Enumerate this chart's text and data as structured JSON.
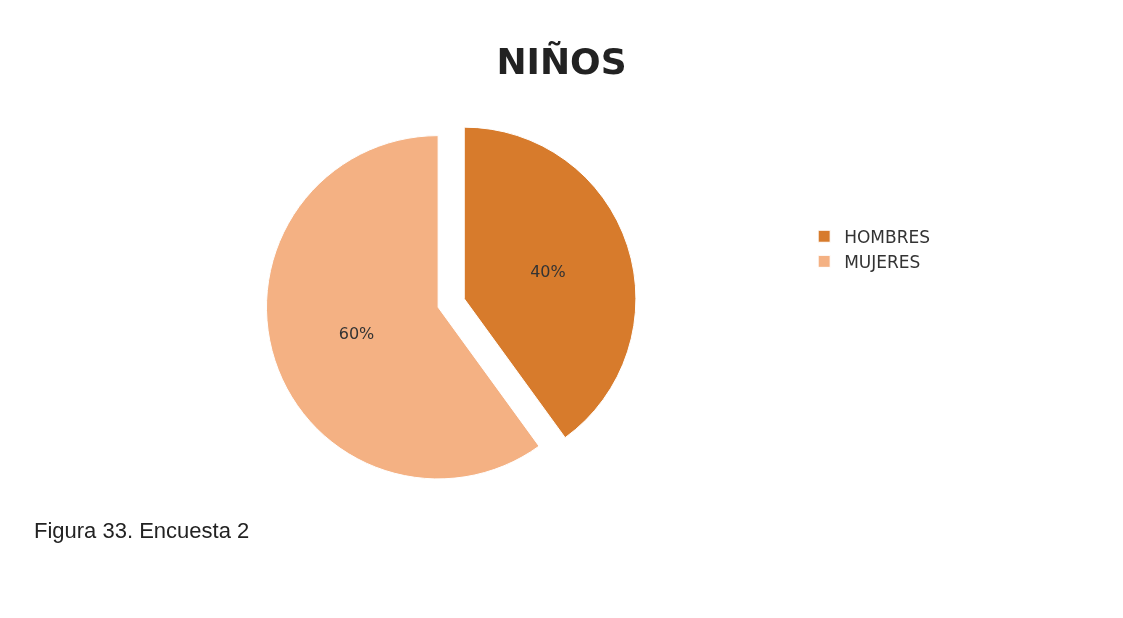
{
  "chart_data": {
    "type": "pie",
    "title": "NIÑOS",
    "categories": [
      "HOMBRES",
      "MUJERES"
    ],
    "values": [
      40,
      60
    ],
    "colors": [
      "#d77b2c",
      "#f4b183"
    ],
    "value_labels": [
      "40%",
      "60%"
    ],
    "legend": "right",
    "annotations": [
      "Figura 33. Encuesta 2"
    ]
  }
}
